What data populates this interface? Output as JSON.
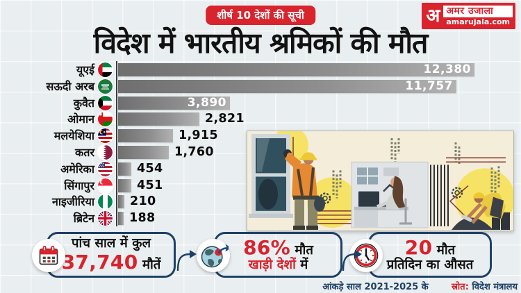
{
  "badge": {
    "label": "शीर्ष 10 देशों की सूची"
  },
  "logo": {
    "initial": "अ",
    "name": "अमर उजाला",
    "domain": "amarujala.com"
  },
  "title": "विदेश में भारतीय श्रमिकों की मौत",
  "chart_data": {
    "type": "bar",
    "orientation": "horizontal",
    "title": "विदेश में भारतीय श्रमिकों की मौत",
    "subtitle": "शीर्ष 10 देशों की सूची",
    "categories": [
      "यूएई",
      "सऊदी अरब",
      "कुवैत",
      "ओमान",
      "मलयेशिया",
      "कतर",
      "अमेरिका",
      "सिंगापुर",
      "नाइजीरिया",
      "ब्रिटेन"
    ],
    "values": [
      12380,
      11757,
      3890,
      2821,
      1915,
      1760,
      454,
      451,
      210,
      188
    ],
    "value_labels": [
      "12,380",
      "11,757",
      "3,890",
      "2,821",
      "1,915",
      "1,760",
      "454",
      "451",
      "210",
      "188"
    ],
    "flags": [
      "uae",
      "saudi",
      "kuwait",
      "oman",
      "malaysia",
      "qatar",
      "usa",
      "singapore",
      "nigeria",
      "uk"
    ],
    "xlim": [
      0,
      12380
    ],
    "grid": "faint background grid, no visible axis ticks",
    "legend": "none"
  },
  "stats": {
    "boxes": [
      {
        "icon": "calendar-icon",
        "lines": [
          [
            {
              "t": "पांच साल में कुल",
              "c": "dark",
              "s": "md"
            }
          ],
          [
            {
              "t": "37,740",
              "c": "red",
              "s": "lg"
            },
            {
              "t": " मौतें",
              "c": "dark",
              "s": "md"
            }
          ]
        ]
      },
      {
        "icon": "globe-icon",
        "lines": [
          [
            {
              "t": "86%",
              "c": "red",
              "s": "lg"
            },
            {
              "t": " मौत",
              "c": "dark",
              "s": "md"
            }
          ],
          [
            {
              "t": "खाड़ी देशों",
              "c": "red",
              "s": "md"
            },
            {
              "t": " में",
              "c": "dark",
              "s": "md"
            }
          ]
        ]
      },
      {
        "icon": "clock-icon",
        "lines": [
          [
            {
              "t": "20",
              "c": "red",
              "s": "lg"
            },
            {
              "t": " मौत",
              "c": "dark",
              "s": "md"
            }
          ],
          [
            {
              "t": "प्रतिदिन का औसत",
              "c": "dark",
              "s": "md"
            }
          ]
        ]
      }
    ]
  },
  "footer": {
    "note": "आंकड़े साल 2021-2025 के",
    "source_label": "स्रोत:",
    "source_value": "विदेश मंत्रालय"
  },
  "colors": {
    "red": "#d9232d",
    "navy": "#1e4066",
    "ink": "#121212",
    "bg": "#e9eef0",
    "barA": "#6f6f6f",
    "barB": "#b2b2b2"
  }
}
